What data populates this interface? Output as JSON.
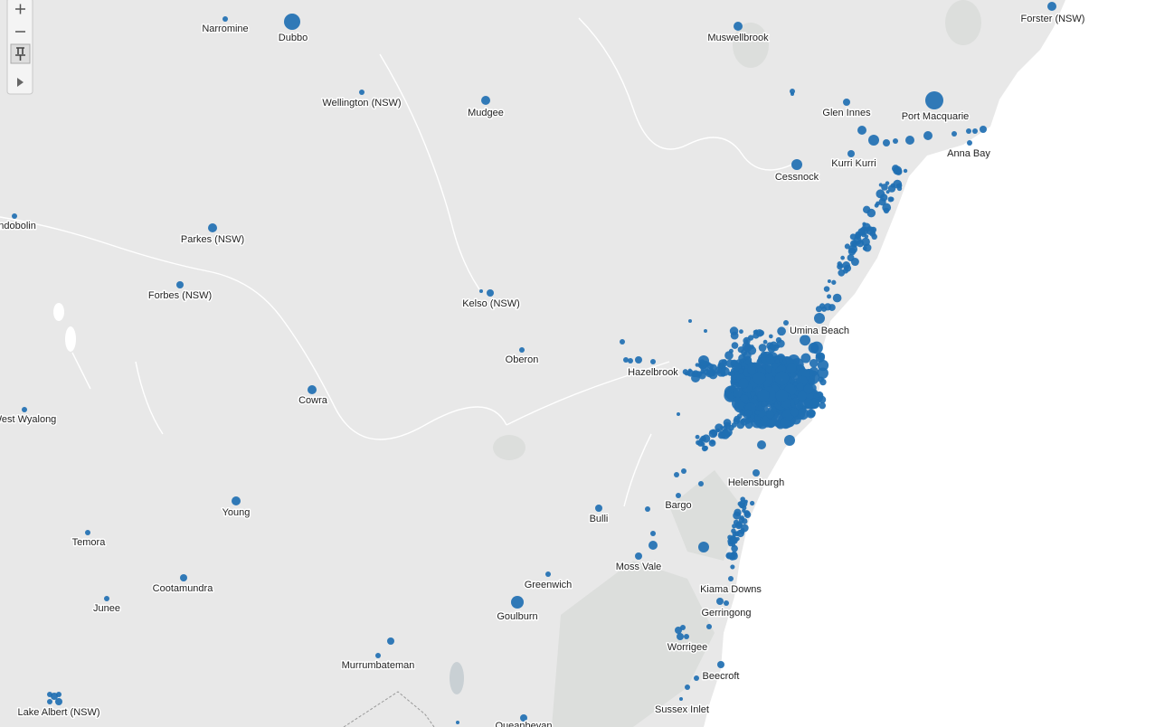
{
  "places": [
    {
      "name": "Narromine"
    },
    {
      "name": "Dubbo"
    },
    {
      "name": "Wellington (NSW)"
    },
    {
      "name": "Mudgee"
    },
    {
      "name": "Muswellbrook"
    },
    {
      "name": "Forster (NSW)"
    },
    {
      "name": "Glen Innes"
    },
    {
      "name": "Port Macquarie"
    },
    {
      "name": "Anna Bay"
    },
    {
      "name": "Kurri Kurri"
    },
    {
      "name": "Cessnock"
    },
    {
      "name": "Condobolin"
    },
    {
      "name": "Parkes (NSW)"
    },
    {
      "name": "Forbes (NSW)"
    },
    {
      "name": "Kelso (NSW)"
    },
    {
      "name": "Oberon"
    },
    {
      "name": "Cowra"
    },
    {
      "name": "West Wyalong"
    },
    {
      "name": "Hazelbrook"
    },
    {
      "name": "Umina Beach"
    },
    {
      "name": "Helensburgh"
    },
    {
      "name": "Bargo"
    },
    {
      "name": "Bulli"
    },
    {
      "name": "Young"
    },
    {
      "name": "Temora"
    },
    {
      "name": "Cootamundra"
    },
    {
      "name": "Junee"
    },
    {
      "name": "Moss Vale"
    },
    {
      "name": "Greenwich"
    },
    {
      "name": "Goulburn"
    },
    {
      "name": "Kiama Downs"
    },
    {
      "name": "Gerringong"
    },
    {
      "name": "Worrigee"
    },
    {
      "name": "Murrumbateman"
    },
    {
      "name": "Beecroft"
    },
    {
      "name": "Sussex Inlet"
    },
    {
      "name": "Lake Albert (NSW)"
    },
    {
      "name": "Queanbeyan"
    }
  ]
}
